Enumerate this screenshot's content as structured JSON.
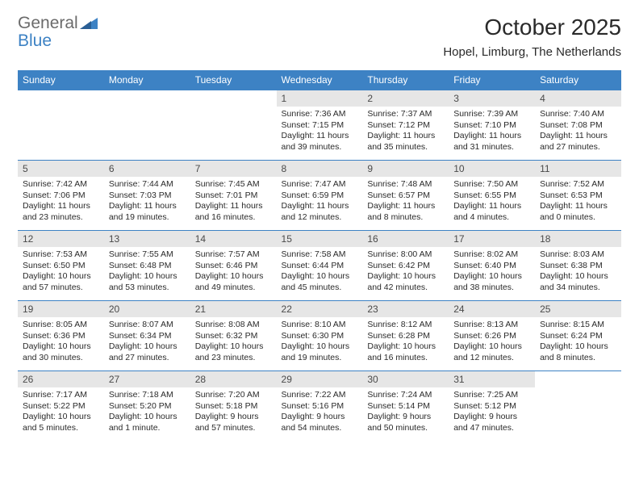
{
  "logo": {
    "line1": "General",
    "line2": "Blue"
  },
  "title": "October 2025",
  "location": "Hopel, Limburg, The Netherlands",
  "colors": {
    "header_bg": "#3d82c4",
    "header_text": "#ffffff",
    "daynum_bg": "#e6e6e6",
    "border": "#3d82c4",
    "body_text": "#2a2a2a",
    "logo_gray": "#6b6b6b",
    "logo_blue": "#3d82c4",
    "page_bg": "#ffffff"
  },
  "day_headers": [
    "Sunday",
    "Monday",
    "Tuesday",
    "Wednesday",
    "Thursday",
    "Friday",
    "Saturday"
  ],
  "weeks": [
    [
      {
        "n": "",
        "sunrise": "",
        "sunset": "",
        "daylight": ""
      },
      {
        "n": "",
        "sunrise": "",
        "sunset": "",
        "daylight": ""
      },
      {
        "n": "",
        "sunrise": "",
        "sunset": "",
        "daylight": ""
      },
      {
        "n": "1",
        "sunrise": "Sunrise: 7:36 AM",
        "sunset": "Sunset: 7:15 PM",
        "daylight": "Daylight: 11 hours and 39 minutes."
      },
      {
        "n": "2",
        "sunrise": "Sunrise: 7:37 AM",
        "sunset": "Sunset: 7:12 PM",
        "daylight": "Daylight: 11 hours and 35 minutes."
      },
      {
        "n": "3",
        "sunrise": "Sunrise: 7:39 AM",
        "sunset": "Sunset: 7:10 PM",
        "daylight": "Daylight: 11 hours and 31 minutes."
      },
      {
        "n": "4",
        "sunrise": "Sunrise: 7:40 AM",
        "sunset": "Sunset: 7:08 PM",
        "daylight": "Daylight: 11 hours and 27 minutes."
      }
    ],
    [
      {
        "n": "5",
        "sunrise": "Sunrise: 7:42 AM",
        "sunset": "Sunset: 7:06 PM",
        "daylight": "Daylight: 11 hours and 23 minutes."
      },
      {
        "n": "6",
        "sunrise": "Sunrise: 7:44 AM",
        "sunset": "Sunset: 7:03 PM",
        "daylight": "Daylight: 11 hours and 19 minutes."
      },
      {
        "n": "7",
        "sunrise": "Sunrise: 7:45 AM",
        "sunset": "Sunset: 7:01 PM",
        "daylight": "Daylight: 11 hours and 16 minutes."
      },
      {
        "n": "8",
        "sunrise": "Sunrise: 7:47 AM",
        "sunset": "Sunset: 6:59 PM",
        "daylight": "Daylight: 11 hours and 12 minutes."
      },
      {
        "n": "9",
        "sunrise": "Sunrise: 7:48 AM",
        "sunset": "Sunset: 6:57 PM",
        "daylight": "Daylight: 11 hours and 8 minutes."
      },
      {
        "n": "10",
        "sunrise": "Sunrise: 7:50 AM",
        "sunset": "Sunset: 6:55 PM",
        "daylight": "Daylight: 11 hours and 4 minutes."
      },
      {
        "n": "11",
        "sunrise": "Sunrise: 7:52 AM",
        "sunset": "Sunset: 6:53 PM",
        "daylight": "Daylight: 11 hours and 0 minutes."
      }
    ],
    [
      {
        "n": "12",
        "sunrise": "Sunrise: 7:53 AM",
        "sunset": "Sunset: 6:50 PM",
        "daylight": "Daylight: 10 hours and 57 minutes."
      },
      {
        "n": "13",
        "sunrise": "Sunrise: 7:55 AM",
        "sunset": "Sunset: 6:48 PM",
        "daylight": "Daylight: 10 hours and 53 minutes."
      },
      {
        "n": "14",
        "sunrise": "Sunrise: 7:57 AM",
        "sunset": "Sunset: 6:46 PM",
        "daylight": "Daylight: 10 hours and 49 minutes."
      },
      {
        "n": "15",
        "sunrise": "Sunrise: 7:58 AM",
        "sunset": "Sunset: 6:44 PM",
        "daylight": "Daylight: 10 hours and 45 minutes."
      },
      {
        "n": "16",
        "sunrise": "Sunrise: 8:00 AM",
        "sunset": "Sunset: 6:42 PM",
        "daylight": "Daylight: 10 hours and 42 minutes."
      },
      {
        "n": "17",
        "sunrise": "Sunrise: 8:02 AM",
        "sunset": "Sunset: 6:40 PM",
        "daylight": "Daylight: 10 hours and 38 minutes."
      },
      {
        "n": "18",
        "sunrise": "Sunrise: 8:03 AM",
        "sunset": "Sunset: 6:38 PM",
        "daylight": "Daylight: 10 hours and 34 minutes."
      }
    ],
    [
      {
        "n": "19",
        "sunrise": "Sunrise: 8:05 AM",
        "sunset": "Sunset: 6:36 PM",
        "daylight": "Daylight: 10 hours and 30 minutes."
      },
      {
        "n": "20",
        "sunrise": "Sunrise: 8:07 AM",
        "sunset": "Sunset: 6:34 PM",
        "daylight": "Daylight: 10 hours and 27 minutes."
      },
      {
        "n": "21",
        "sunrise": "Sunrise: 8:08 AM",
        "sunset": "Sunset: 6:32 PM",
        "daylight": "Daylight: 10 hours and 23 minutes."
      },
      {
        "n": "22",
        "sunrise": "Sunrise: 8:10 AM",
        "sunset": "Sunset: 6:30 PM",
        "daylight": "Daylight: 10 hours and 19 minutes."
      },
      {
        "n": "23",
        "sunrise": "Sunrise: 8:12 AM",
        "sunset": "Sunset: 6:28 PM",
        "daylight": "Daylight: 10 hours and 16 minutes."
      },
      {
        "n": "24",
        "sunrise": "Sunrise: 8:13 AM",
        "sunset": "Sunset: 6:26 PM",
        "daylight": "Daylight: 10 hours and 12 minutes."
      },
      {
        "n": "25",
        "sunrise": "Sunrise: 8:15 AM",
        "sunset": "Sunset: 6:24 PM",
        "daylight": "Daylight: 10 hours and 8 minutes."
      }
    ],
    [
      {
        "n": "26",
        "sunrise": "Sunrise: 7:17 AM",
        "sunset": "Sunset: 5:22 PM",
        "daylight": "Daylight: 10 hours and 5 minutes."
      },
      {
        "n": "27",
        "sunrise": "Sunrise: 7:18 AM",
        "sunset": "Sunset: 5:20 PM",
        "daylight": "Daylight: 10 hours and 1 minute."
      },
      {
        "n": "28",
        "sunrise": "Sunrise: 7:20 AM",
        "sunset": "Sunset: 5:18 PM",
        "daylight": "Daylight: 9 hours and 57 minutes."
      },
      {
        "n": "29",
        "sunrise": "Sunrise: 7:22 AM",
        "sunset": "Sunset: 5:16 PM",
        "daylight": "Daylight: 9 hours and 54 minutes."
      },
      {
        "n": "30",
        "sunrise": "Sunrise: 7:24 AM",
        "sunset": "Sunset: 5:14 PM",
        "daylight": "Daylight: 9 hours and 50 minutes."
      },
      {
        "n": "31",
        "sunrise": "Sunrise: 7:25 AM",
        "sunset": "Sunset: 5:12 PM",
        "daylight": "Daylight: 9 hours and 47 minutes."
      },
      {
        "n": "",
        "sunrise": "",
        "sunset": "",
        "daylight": ""
      }
    ]
  ]
}
